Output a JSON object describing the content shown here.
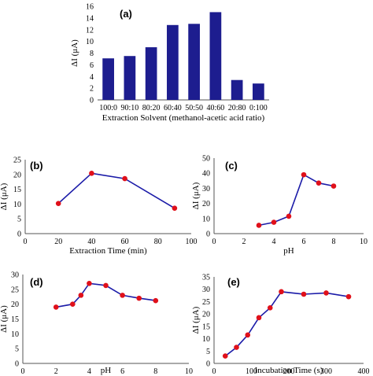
{
  "colors": {
    "bar": "#1d1d8f",
    "line": "#1b1ba8",
    "marker": "#e0101a",
    "axis": "#555555"
  },
  "chart_data": [
    {
      "id": "a",
      "panel_label": "(a)",
      "type": "bar",
      "categories": [
        "100:0",
        "90:10",
        "80:20",
        "60:40",
        "50:50",
        "40:60",
        "20:80",
        "0:100"
      ],
      "values": [
        7.1,
        7.5,
        9.0,
        12.8,
        13.0,
        15.0,
        3.4,
        2.8
      ],
      "xlabel": "Extraction Solvent (methanol-acetic acid ratio)",
      "ylabel": "ΔI (μA)",
      "ylim": [
        0,
        16
      ],
      "yticks": [
        0,
        2,
        4,
        6,
        8,
        10,
        12,
        14,
        16
      ],
      "ytick_labels": [
        "0",
        "2",
        "4",
        "6",
        "8",
        "10",
        "12",
        "14",
        "16"
      ]
    },
    {
      "id": "b",
      "panel_label": "(b)",
      "type": "line",
      "x": [
        20,
        40,
        60,
        90
      ],
      "y": [
        10.2,
        20.4,
        18.6,
        8.6
      ],
      "xlabel": "Extraction Time (min)",
      "ylabel": "ΔI (μA)",
      "xlim": [
        0,
        100
      ],
      "ylim": [
        0,
        25
      ],
      "xticks": [
        0,
        20,
        40,
        60,
        80,
        100
      ],
      "yticks": [
        0,
        5,
        10,
        15,
        20,
        25
      ],
      "xtick_labels": [
        "0",
        "20",
        "40",
        "60",
        "80",
        "100"
      ],
      "ytick_labels": [
        "0",
        "5",
        "10",
        "15",
        "20",
        "25"
      ]
    },
    {
      "id": "c",
      "panel_label": "(c)",
      "type": "line",
      "x": [
        3,
        4,
        5,
        6,
        7,
        8
      ],
      "y": [
        5.5,
        7.5,
        11.5,
        39.0,
        33.5,
        31.5
      ],
      "xlabel": "pH",
      "ylabel": "ΔI (μA)",
      "xlim": [
        0,
        10
      ],
      "ylim": [
        0,
        50
      ],
      "xticks": [
        0,
        2,
        4,
        6,
        8,
        10
      ],
      "yticks": [
        0,
        10,
        20,
        30,
        40,
        50
      ],
      "xtick_labels": [
        "0",
        "2",
        "4",
        "6",
        "8",
        "10"
      ],
      "ytick_labels": [
        "0",
        "10",
        "20",
        "30",
        "40",
        "50"
      ]
    },
    {
      "id": "d",
      "panel_label": "(d)",
      "type": "line",
      "x": [
        2,
        3,
        3.5,
        4,
        5,
        6,
        7,
        8
      ],
      "y": [
        19.0,
        20.0,
        23.0,
        27.0,
        26.3,
        23.0,
        22.0,
        21.2
      ],
      "xlabel": "pH",
      "ylabel": "ΔI (μA)",
      "xlim": [
        0,
        10
      ],
      "ylim": [
        0,
        30
      ],
      "xticks": [
        0,
        2,
        4,
        6,
        8,
        10
      ],
      "yticks": [
        0,
        5,
        10,
        15,
        20,
        25,
        30
      ],
      "xtick_labels": [
        "0",
        "2",
        "4",
        "6",
        "8",
        "10"
      ],
      "ytick_labels": [
        "0",
        "5",
        "10",
        "15",
        "20",
        "25",
        "30"
      ]
    },
    {
      "id": "e",
      "panel_label": "(e)",
      "type": "line",
      "x": [
        30,
        60,
        90,
        120,
        150,
        180,
        240,
        300,
        360
      ],
      "y": [
        3.0,
        6.5,
        11.5,
        18.5,
        22.5,
        29.0,
        28.0,
        28.5,
        27.0
      ],
      "xlabel": "Incubation Time (s)",
      "ylabel": "ΔI (μA)",
      "xlim": [
        0,
        400
      ],
      "ylim": [
        0,
        35
      ],
      "xticks": [
        0,
        100,
        200,
        300,
        400
      ],
      "yticks": [
        0,
        5,
        10,
        15,
        20,
        25,
        30,
        35
      ],
      "xtick_labels": [
        "0",
        "100",
        "200",
        "300",
        "400"
      ],
      "ytick_labels": [
        "0",
        "5",
        "10",
        "15",
        "20",
        "25",
        "30",
        "35"
      ]
    }
  ]
}
